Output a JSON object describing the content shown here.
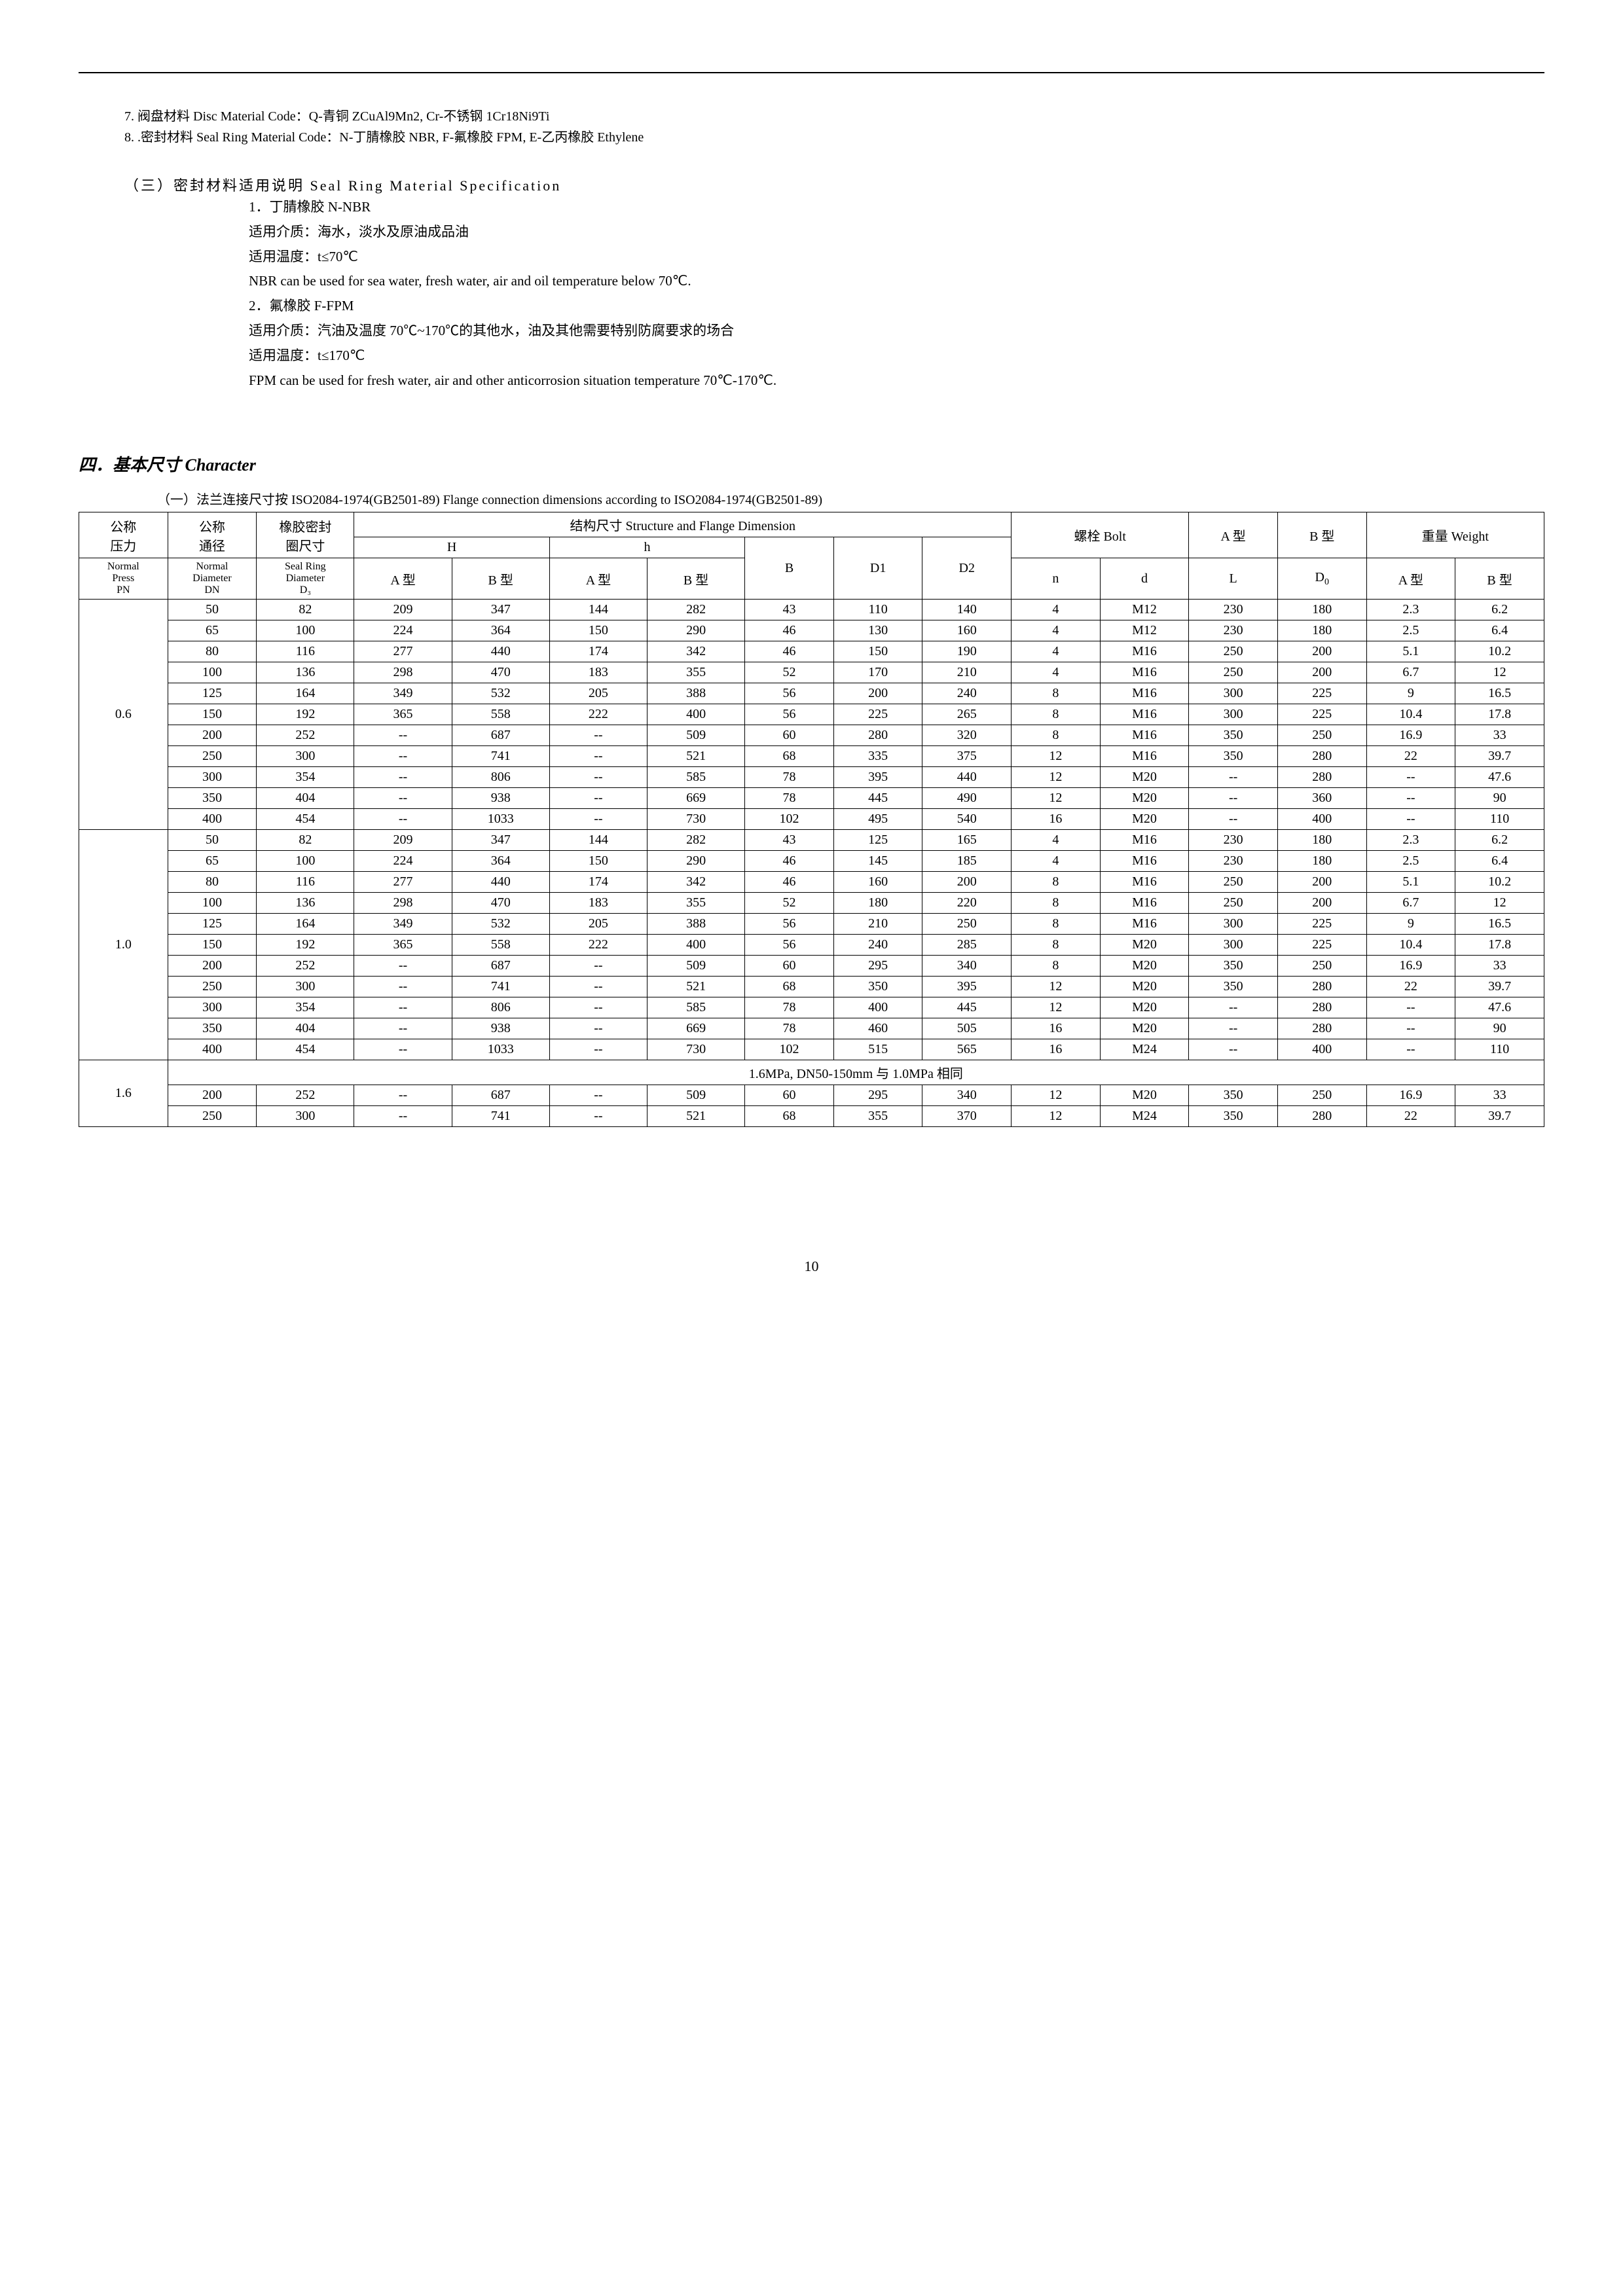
{
  "notes": {
    "n7": "7. 阀盘材料 Disc Material Code：Q-青铜 ZCuAl9Mn2, Cr-不锈钢 1Cr18Ni9Ti",
    "n8": "8. .密封材料 Seal Ring Material Code：N-丁腈橡胶 NBR, F-氟橡胶 FPM, E-乙丙橡胶 Ethylene"
  },
  "spec": {
    "heading": "（三）密封材料适用说明 Seal Ring Material Specification",
    "l1": "1．丁腈橡胶 N-NBR",
    "l2": "适用介质：海水，淡水及原油成品油",
    "l3": "适用温度：t≤70℃",
    "l4": "NBR can be used for sea water, fresh water, air and oil temperature below 70℃.",
    "l5": "2．氟橡胶 F-FPM",
    "l6": "适用介质：汽油及温度 70℃~170℃的其他水，油及其他需要特别防腐要求的场合",
    "l7": "适用温度：t≤170℃",
    "l8": "FPM can be used for fresh water, air and other anticorrosion situation temperature 70℃-170℃."
  },
  "section4": {
    "heading": "四．基本尺寸 Character",
    "caption": "（一）法兰连接尺寸按 ISO2084-1974(GB2501-89) Flange connection dimensions according to ISO2084-1974(GB2501-89)"
  },
  "table": {
    "headers": {
      "pn_cn": "公称\n压力",
      "dn_cn": "公称\n通径",
      "d3_cn": "橡胶密封\n圈尺寸",
      "struct": "结构尺寸 Structure and Flange Dimension",
      "bolt": "螺栓 Bolt",
      "typeA": "A 型",
      "typeB": "B 型",
      "weight": "重量 Weight",
      "pn_en": "Normal\nPress\nPN",
      "dn_en": "Normal\nDiameter\nDN",
      "d3_en": "Seal Ring\nDiameter\nD₃",
      "H": "H",
      "h": "h",
      "B": "B",
      "D1": "D1",
      "D2": "D2",
      "n": "n",
      "d": "d",
      "L": "L",
      "D0": "D₀",
      "HA": "A 型",
      "HB": "B 型",
      "hA": "A 型",
      "hB": "B 型",
      "WA": "A 型",
      "WB": "B 型"
    },
    "groups": [
      {
        "pn": "0.6",
        "rows": [
          [
            "50",
            "82",
            "209",
            "347",
            "144",
            "282",
            "43",
            "110",
            "140",
            "4",
            "M12",
            "230",
            "180",
            "2.3",
            "6.2"
          ],
          [
            "65",
            "100",
            "224",
            "364",
            "150",
            "290",
            "46",
            "130",
            "160",
            "4",
            "M12",
            "230",
            "180",
            "2.5",
            "6.4"
          ],
          [
            "80",
            "116",
            "277",
            "440",
            "174",
            "342",
            "46",
            "150",
            "190",
            "4",
            "M16",
            "250",
            "200",
            "5.1",
            "10.2"
          ],
          [
            "100",
            "136",
            "298",
            "470",
            "183",
            "355",
            "52",
            "170",
            "210",
            "4",
            "M16",
            "250",
            "200",
            "6.7",
            "12"
          ],
          [
            "125",
            "164",
            "349",
            "532",
            "205",
            "388",
            "56",
            "200",
            "240",
            "8",
            "M16",
            "300",
            "225",
            "9",
            "16.5"
          ],
          [
            "150",
            "192",
            "365",
            "558",
            "222",
            "400",
            "56",
            "225",
            "265",
            "8",
            "M16",
            "300",
            "225",
            "10.4",
            "17.8"
          ],
          [
            "200",
            "252",
            "--",
            "687",
            "--",
            "509",
            "60",
            "280",
            "320",
            "8",
            "M16",
            "350",
            "250",
            "16.9",
            "33"
          ],
          [
            "250",
            "300",
            "--",
            "741",
            "--",
            "521",
            "68",
            "335",
            "375",
            "12",
            "M16",
            "350",
            "280",
            "22",
            "39.7"
          ],
          [
            "300",
            "354",
            "--",
            "806",
            "--",
            "585",
            "78",
            "395",
            "440",
            "12",
            "M20",
            "--",
            "280",
            "--",
            "47.6"
          ],
          [
            "350",
            "404",
            "--",
            "938",
            "--",
            "669",
            "78",
            "445",
            "490",
            "12",
            "M20",
            "--",
            "360",
            "--",
            "90"
          ],
          [
            "400",
            "454",
            "--",
            "1033",
            "--",
            "730",
            "102",
            "495",
            "540",
            "16",
            "M20",
            "--",
            "400",
            "--",
            "110"
          ]
        ]
      },
      {
        "pn": "1.0",
        "rows": [
          [
            "50",
            "82",
            "209",
            "347",
            "144",
            "282",
            "43",
            "125",
            "165",
            "4",
            "M16",
            "230",
            "180",
            "2.3",
            "6.2"
          ],
          [
            "65",
            "100",
            "224",
            "364",
            "150",
            "290",
            "46",
            "145",
            "185",
            "4",
            "M16",
            "230",
            "180",
            "2.5",
            "6.4"
          ],
          [
            "80",
            "116",
            "277",
            "440",
            "174",
            "342",
            "46",
            "160",
            "200",
            "8",
            "M16",
            "250",
            "200",
            "5.1",
            "10.2"
          ],
          [
            "100",
            "136",
            "298",
            "470",
            "183",
            "355",
            "52",
            "180",
            "220",
            "8",
            "M16",
            "250",
            "200",
            "6.7",
            "12"
          ],
          [
            "125",
            "164",
            "349",
            "532",
            "205",
            "388",
            "56",
            "210",
            "250",
            "8",
            "M16",
            "300",
            "225",
            "9",
            "16.5"
          ],
          [
            "150",
            "192",
            "365",
            "558",
            "222",
            "400",
            "56",
            "240",
            "285",
            "8",
            "M20",
            "300",
            "225",
            "10.4",
            "17.8"
          ],
          [
            "200",
            "252",
            "--",
            "687",
            "--",
            "509",
            "60",
            "295",
            "340",
            "8",
            "M20",
            "350",
            "250",
            "16.9",
            "33"
          ],
          [
            "250",
            "300",
            "--",
            "741",
            "--",
            "521",
            "68",
            "350",
            "395",
            "12",
            "M20",
            "350",
            "280",
            "22",
            "39.7"
          ],
          [
            "300",
            "354",
            "--",
            "806",
            "--",
            "585",
            "78",
            "400",
            "445",
            "12",
            "M20",
            "--",
            "280",
            "--",
            "47.6"
          ],
          [
            "350",
            "404",
            "--",
            "938",
            "--",
            "669",
            "78",
            "460",
            "505",
            "16",
            "M20",
            "--",
            "280",
            "--",
            "90"
          ],
          [
            "400",
            "454",
            "--",
            "1033",
            "--",
            "730",
            "102",
            "515",
            "565",
            "16",
            "M24",
            "--",
            "400",
            "--",
            "110"
          ]
        ]
      },
      {
        "pn": "1.6",
        "note": "1.6MPa, DN50-150mm 与 1.0MPa 相同",
        "rows": [
          [
            "200",
            "252",
            "--",
            "687",
            "--",
            "509",
            "60",
            "295",
            "340",
            "12",
            "M20",
            "350",
            "250",
            "16.9",
            "33"
          ],
          [
            "250",
            "300",
            "--",
            "741",
            "--",
            "521",
            "68",
            "355",
            "370",
            "12",
            "M24",
            "350",
            "280",
            "22",
            "39.7"
          ]
        ]
      }
    ]
  },
  "page": "10"
}
